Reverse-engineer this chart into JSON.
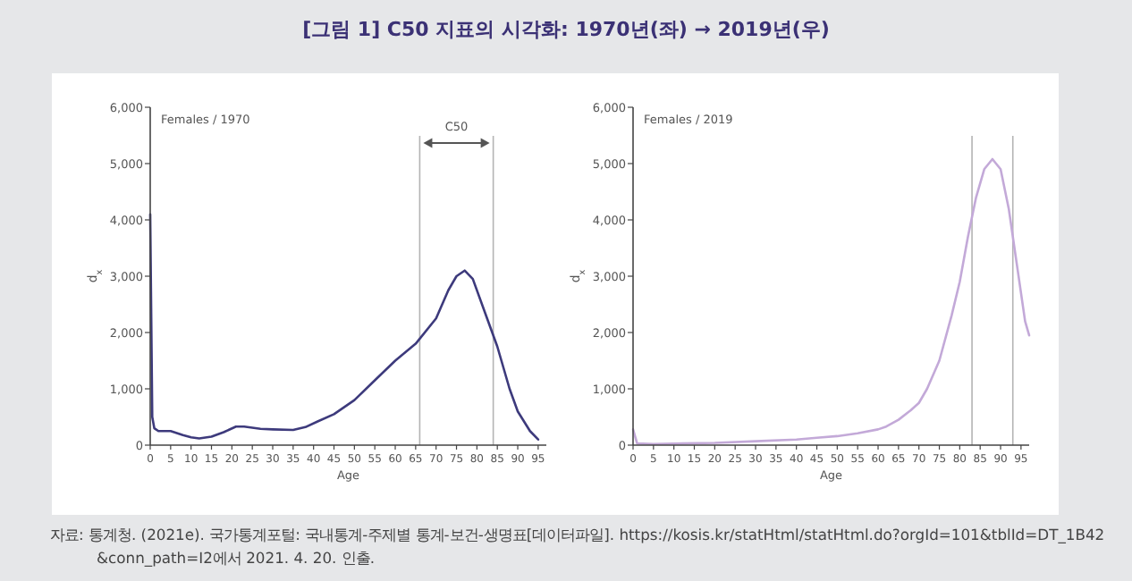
{
  "chart_data": [
    {
      "type": "line",
      "title": "[그림 1] C50 지표의 시각화: 1970년(좌) → 2019년(우)",
      "xlabel": "Age",
      "ylabel": "d$_{x}$",
      "x": [
        0,
        0.5,
        1,
        2,
        5,
        8,
        10,
        12,
        15,
        18,
        21,
        23,
        27,
        30,
        35,
        38,
        41,
        45,
        50,
        55,
        60,
        65,
        70,
        73,
        75,
        77,
        79,
        82,
        85,
        88,
        90,
        93,
        95
      ],
      "series": [
        {
          "color": "#3d3a7c",
          "values": [
            4100,
            500,
            300,
            250,
            250,
            180,
            140,
            120,
            150,
            230,
            330,
            330,
            290,
            280,
            270,
            320,
            420,
            550,
            800,
            1150,
            1500,
            1800,
            2250,
            2750,
            3000,
            3100,
            2950,
            2350,
            1750,
            1000,
            600,
            250,
            100
          ]
        }
      ],
      "xlim": [
        0,
        97
      ],
      "ylim": [
        0,
        6000
      ],
      "xticks": [
        0,
        5,
        10,
        15,
        20,
        25,
        30,
        35,
        40,
        45,
        50,
        55,
        60,
        65,
        70,
        75,
        80,
        85,
        90,
        95
      ],
      "yticks": [
        0,
        {
          "value": 1000,
          "label": "1,000"
        },
        {
          "value": 2000,
          "label": "2,000"
        },
        {
          "value": 3000,
          "label": "3,000"
        },
        {
          "value": 4000,
          "label": "4,000"
        },
        {
          "value": 5000,
          "label": "5,000"
        },
        {
          "value": 6000,
          "label": "6,000"
        }
      ],
      "ref_lines": [
        {
          "axis": "x",
          "value": 66,
          "color": "#b4b4b4"
        },
        {
          "axis": "x",
          "value": 84,
          "color": "#b4b4b4"
        }
      ],
      "annotations": [
        "Females / 1970",
        "C50",
        "자료: 통계청. (2021e). 국가통계포털: 국내통계-주제별 통계-보건-생명표[데이터파일]. https://kosis.kr/statHtml/statHtml.do?orgId=101&tblId=DT_1B42&conn_path=I2에서 2021. 4. 20. 인출."
      ]
    },
    {
      "type": "line",
      "xlabel": "Age",
      "ylabel": "d$_{x}$",
      "x": [
        0,
        1,
        5,
        20,
        30,
        40,
        45,
        50,
        55,
        60,
        62,
        65,
        68,
        70,
        72,
        75,
        78,
        80,
        82,
        84,
        86,
        88,
        90,
        92,
        94,
        96,
        97
      ],
      "series": [
        {
          "color": "#c3a9d8",
          "values": [
            280,
            30,
            20,
            40,
            70,
            100,
            130,
            160,
            210,
            280,
            330,
            450,
            620,
            750,
            1000,
            1500,
            2300,
            2900,
            3700,
            4400,
            4900,
            5080,
            4900,
            4200,
            3200,
            2200,
            1950
          ]
        }
      ],
      "xlim": [
        0,
        97
      ],
      "ylim": [
        0,
        6000
      ],
      "xticks": [
        0,
        5,
        10,
        15,
        20,
        25,
        30,
        35,
        40,
        45,
        50,
        55,
        60,
        65,
        70,
        75,
        80,
        85,
        90,
        95
      ],
      "yticks": [
        0,
        {
          "value": 1000,
          "label": "1,000"
        },
        {
          "value": 2000,
          "label": "2,000"
        },
        {
          "value": 3000,
          "label": "3,000"
        },
        {
          "value": 4000,
          "label": "4,000"
        },
        {
          "value": 5000,
          "label": "5,000"
        },
        {
          "value": 6000,
          "label": "6,000"
        }
      ],
      "ref_lines": [
        {
          "axis": "x",
          "value": 83,
          "color": "#b4b4b4"
        },
        {
          "axis": "x",
          "value": 93,
          "color": "#b4b4b4"
        }
      ],
      "annotations": [
        "Females / 2019"
      ]
    }
  ]
}
